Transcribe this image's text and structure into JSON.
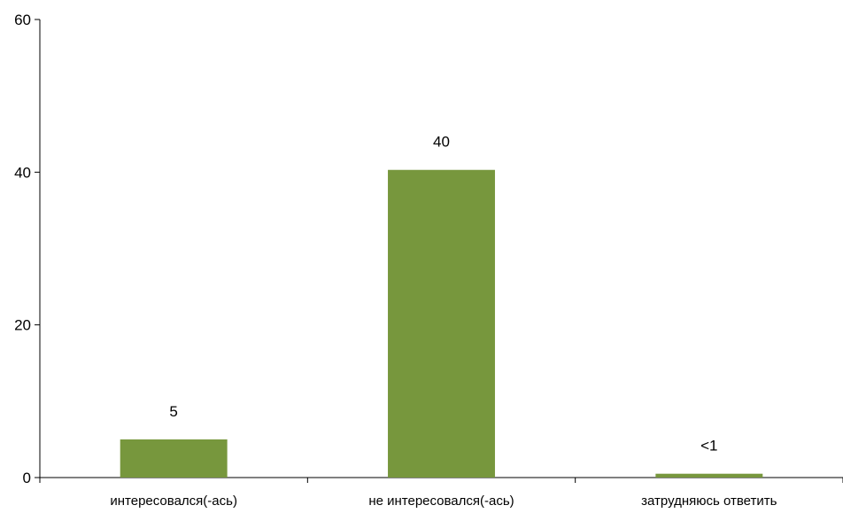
{
  "chart_data": {
    "type": "bar",
    "categories": [
      "интересовался(-ась)",
      "не интересовался(-ась)",
      "затрудняюсь ответить"
    ],
    "values": [
      5,
      40.3,
      0.5
    ],
    "data_labels": [
      "5",
      "40",
      "<1"
    ],
    "title": "",
    "xlabel": "",
    "ylabel": "",
    "ylim": [
      0,
      60
    ],
    "yticks": [
      0,
      20,
      40,
      60
    ],
    "ytick_labels": [
      "0",
      "20",
      "40",
      "60"
    ],
    "grid": false,
    "legend": "none",
    "bar_color": "#77973D"
  }
}
